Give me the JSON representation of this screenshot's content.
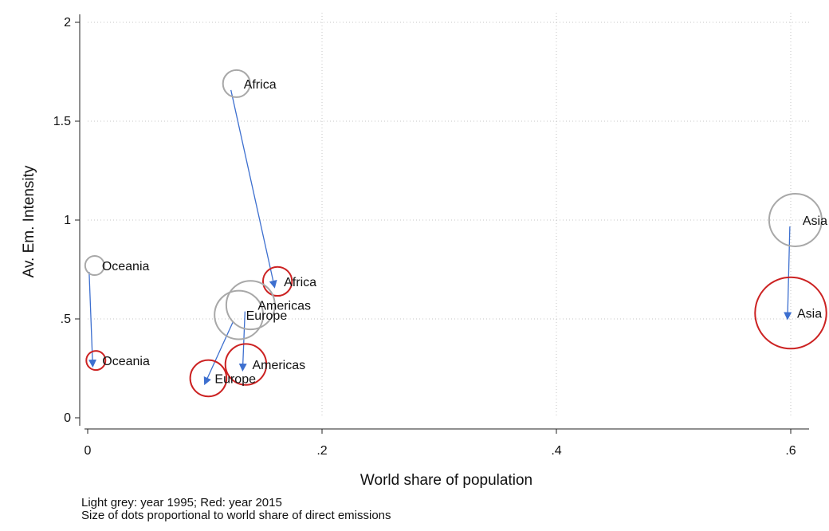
{
  "chart_data": {
    "type": "scatter",
    "xlabel": "World share of population",
    "ylabel": "Av. Em. Intensity",
    "xlim": [
      0,
      0.64
    ],
    "ylim": [
      0,
      2
    ],
    "x_ticks": [
      0,
      0.2,
      0.4,
      0.6
    ],
    "x_tick_labels": [
      "0",
      ".2",
      ".4",
      ".6"
    ],
    "y_ticks": [
      0,
      0.5,
      1,
      1.5,
      2
    ],
    "y_tick_labels": [
      "0",
      ".5",
      "1",
      "1.5",
      "2"
    ],
    "grid": true,
    "colors": {
      "y1995": "#a8a8a8",
      "y2015": "#cc2222",
      "arrow": "#3d6fcf"
    },
    "points": [
      {
        "region": "Africa",
        "x1995": 0.127,
        "y1995": 1.69,
        "x2015": 0.162,
        "y2015": 0.69,
        "emshare1995": 0.04,
        "emshare2015": 0.05
      },
      {
        "region": "Americas",
        "x1995": 0.139,
        "y1995": 0.57,
        "x2015": 0.135,
        "y2015": 0.27,
        "emshare1995": 0.22,
        "emshare2015": 0.14
      },
      {
        "region": "Europe",
        "x1995": 0.129,
        "y1995": 0.52,
        "x2015": 0.103,
        "y2015": 0.2,
        "emshare1995": 0.22,
        "emshare2015": 0.1
      },
      {
        "region": "Oceania",
        "x1995": 0.006,
        "y1995": 0.77,
        "x2015": 0.007,
        "y2015": 0.29,
        "emshare1995": 0.01,
        "emshare2015": 0.01
      },
      {
        "region": "Asia",
        "x1995": 0.604,
        "y1995": 1.0,
        "x2015": 0.6,
        "y2015": 0.53,
        "emshare1995": 0.27,
        "emshare2015": 0.57
      }
    ]
  },
  "notes": {
    "line1": "Light grey: year 1995; Red: year 2015",
    "line2": "Size of dots proportional to world share of direct emissions"
  }
}
